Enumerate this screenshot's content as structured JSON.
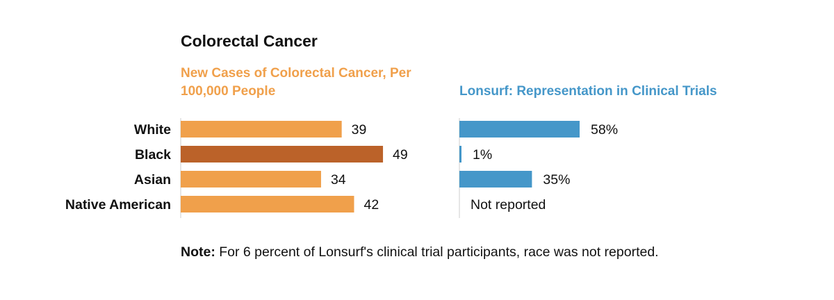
{
  "colors": {
    "orange": "#f0a04b",
    "orange_highlight": "#bb6229",
    "blue": "#4597c9",
    "text": "#111111",
    "axis": "#cccccc"
  },
  "chart_data": [
    {
      "type": "bar",
      "orientation": "horizontal",
      "title": "Colorectal Cancer",
      "subtitle": "New Cases of Colorectal Cancer, Per 100,000 People",
      "categories": [
        "White",
        "Black",
        "Asian",
        "Native American"
      ],
      "values": [
        39,
        49,
        34,
        42
      ],
      "labels": [
        "39",
        "49",
        "34",
        "42"
      ],
      "highlight": "Black",
      "xlim": [
        0,
        50
      ]
    },
    {
      "type": "bar",
      "orientation": "horizontal",
      "subtitle": "Lonsurf: Representation in Clinical Trials",
      "categories": [
        "White",
        "Black",
        "Asian",
        "Native American"
      ],
      "values": [
        58,
        1,
        35,
        null
      ],
      "labels": [
        "58%",
        "1%",
        "35%",
        "Not reported"
      ],
      "unit": "%",
      "xlim": [
        0,
        100
      ]
    }
  ],
  "note": {
    "label": "Note:",
    "text": " For 6 percent of Lonsurf's clinical trial participants, race was not reported."
  }
}
